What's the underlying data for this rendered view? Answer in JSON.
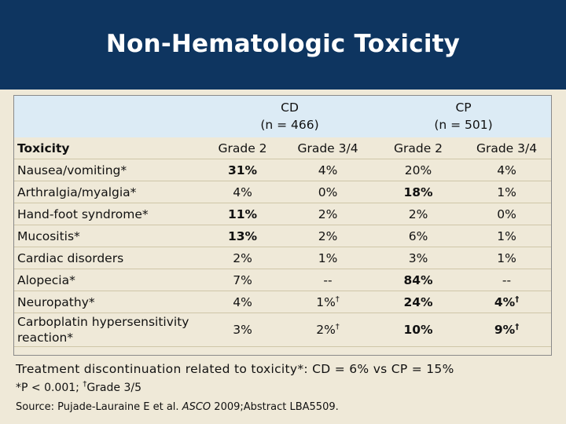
{
  "title": "Non-Hematologic Toxicity",
  "groups": [
    {
      "name": "CD",
      "n": "(n = 466)"
    },
    {
      "name": "CP",
      "n": "(n = 501)"
    }
  ],
  "row_header": "Toxicity",
  "columns": [
    "Grade 2",
    "Grade 3/4",
    "Grade 2",
    "Grade 3/4"
  ],
  "rows": [
    {
      "label": "Nausea/vomiting*",
      "cells": [
        "31%",
        "4%",
        "20%",
        "4%"
      ],
      "bold": [
        true,
        false,
        false,
        false
      ],
      "dagger": [
        false,
        false,
        false,
        false
      ]
    },
    {
      "label": "Arthralgia/myalgia*",
      "cells": [
        "4%",
        "0%",
        "18%",
        "1%"
      ],
      "bold": [
        false,
        false,
        true,
        false
      ],
      "dagger": [
        false,
        false,
        false,
        false
      ]
    },
    {
      "label": "Hand-foot syndrome*",
      "cells": [
        "11%",
        "2%",
        "2%",
        "0%"
      ],
      "bold": [
        true,
        false,
        false,
        false
      ],
      "dagger": [
        false,
        false,
        false,
        false
      ]
    },
    {
      "label": "Mucositis*",
      "cells": [
        "13%",
        "2%",
        "6%",
        "1%"
      ],
      "bold": [
        true,
        false,
        false,
        false
      ],
      "dagger": [
        false,
        false,
        false,
        false
      ]
    },
    {
      "label": "Cardiac disorders",
      "cells": [
        "2%",
        "1%",
        "3%",
        "1%"
      ],
      "bold": [
        false,
        false,
        false,
        false
      ],
      "dagger": [
        false,
        false,
        false,
        false
      ]
    },
    {
      "label": "Alopecia*",
      "cells": [
        "7%",
        "--",
        "84%",
        "--"
      ],
      "bold": [
        false,
        false,
        true,
        false
      ],
      "dagger": [
        false,
        false,
        false,
        false
      ]
    },
    {
      "label": "Neuropathy*",
      "cells": [
        "4%",
        "1%",
        "24%",
        "4%"
      ],
      "bold": [
        false,
        false,
        true,
        true
      ],
      "dagger": [
        false,
        true,
        false,
        true
      ]
    },
    {
      "label": "Carboplatin hypersensitivity reaction*",
      "cells": [
        "3%",
        "2%",
        "10%",
        "9%"
      ],
      "bold": [
        false,
        false,
        true,
        true
      ],
      "dagger": [
        false,
        true,
        false,
        true
      ]
    }
  ],
  "dagger_symbol": "†",
  "footnote_main": "Treatment discontinuation related to toxicity*: CD = 6% vs CP = 15%",
  "footnote_p": "*P < 0.001; ",
  "footnote_grade": "Grade 3/5",
  "source_prefix": "Source: Pujade-Lauraine E et al. ",
  "source_journal": "ASCO",
  "source_suffix": " 2009;Abstract LBA5509.",
  "colors": {
    "title_bar": "#0e3560",
    "background": "#efe9d8",
    "header_fill": "#dcebf5"
  }
}
